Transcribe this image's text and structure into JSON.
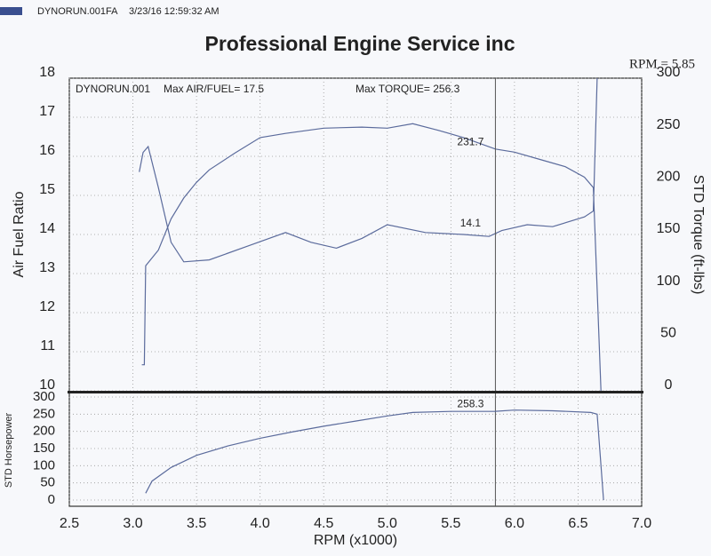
{
  "header": {
    "file": "DYNORUN.001FA",
    "timestamp": "3/23/16 12:59:32 AM"
  },
  "chart_data": [
    {
      "type": "line",
      "title": "Professional Engine Service inc",
      "annotations": [
        "DYNORUN.001",
        "Max AIR/FUEL= 17.5",
        "Max TORQUE= 256.3"
      ],
      "cursor": {
        "value": 5.85,
        "label": "RPM = 5.85"
      },
      "y_label": "Air Fuel Ratio",
      "y2_label": "STD Torque (ft-lbs)",
      "xlim": [
        2.5,
        7.0
      ],
      "xticks": [
        2.5,
        3,
        3.5,
        4,
        4.5,
        5,
        5.5,
        6,
        6.5,
        7
      ],
      "ylim": [
        10,
        18
      ],
      "yticks": [
        10,
        11,
        12,
        13,
        14,
        15,
        16,
        17,
        18
      ],
      "y2lim": [
        0,
        300
      ],
      "y2ticks": [
        0,
        50,
        100,
        150,
        200,
        250,
        300
      ],
      "grid": true,
      "series": [
        {
          "name": "Air Fuel Ratio",
          "color": "#5b6b9c",
          "cursor_value": 14.1,
          "x": [
            3.05,
            3.08,
            3.12,
            3.2,
            3.3,
            3.4,
            3.6,
            3.9,
            4.2,
            4.4,
            4.6,
            4.8,
            5.0,
            5.3,
            5.6,
            5.8,
            5.9,
            6.1,
            6.3,
            6.55,
            6.62,
            6.65
          ],
          "values": [
            15.6,
            16.1,
            16.25,
            15.2,
            13.8,
            13.3,
            13.35,
            13.7,
            14.05,
            13.8,
            13.65,
            13.9,
            14.25,
            14.05,
            14.0,
            13.95,
            14.1,
            14.25,
            14.2,
            14.45,
            14.6,
            18.0
          ]
        },
        {
          "name": "STD Torque",
          "color": "#5b6b9c",
          "axis": "y2",
          "cursor_value": 231.7,
          "x": [
            3.07,
            3.09,
            3.1,
            3.2,
            3.3,
            3.4,
            3.5,
            3.6,
            3.8,
            4.0,
            4.2,
            4.5,
            4.8,
            5.0,
            5.2,
            5.4,
            5.6,
            5.85,
            6.0,
            6.2,
            6.4,
            6.55,
            6.62,
            6.68
          ],
          "values": [
            25,
            25,
            120,
            135,
            165,
            185,
            200,
            212,
            228,
            243,
            247,
            252,
            253,
            252,
            256.3,
            250,
            243,
            232,
            229,
            222,
            215,
            205,
            195,
            0
          ]
        }
      ]
    },
    {
      "type": "line",
      "y_label": "STD Horsepower",
      "x_label": "RPM (x1000)",
      "xlim": [
        2.5,
        7.0
      ],
      "xticks": [
        2.5,
        {
          "value": 3,
          "label": "3.0"
        },
        3.5,
        {
          "value": 4,
          "label": "4.0"
        },
        4.5,
        {
          "value": 5,
          "label": "5.0"
        },
        5.5,
        {
          "value": 6,
          "label": "6.0"
        },
        6.5,
        {
          "value": 7,
          "label": "7.0"
        }
      ],
      "ylim": [
        0,
        300
      ],
      "yticks": [
        0,
        50,
        100,
        150,
        200,
        250,
        300
      ],
      "grid": true,
      "series": [
        {
          "name": "STD Horsepower",
          "color": "#5b6b9c",
          "cursor_value": 258.3,
          "x": [
            3.1,
            3.15,
            3.3,
            3.5,
            3.75,
            4.0,
            4.25,
            4.5,
            4.75,
            5.0,
            5.2,
            5.5,
            5.85,
            6.0,
            6.3,
            6.6,
            6.65,
            6.7
          ],
          "values": [
            20,
            55,
            95,
            130,
            158,
            180,
            198,
            215,
            230,
            245,
            255,
            258,
            258.3,
            262,
            260,
            255,
            250,
            0
          ]
        }
      ]
    }
  ]
}
